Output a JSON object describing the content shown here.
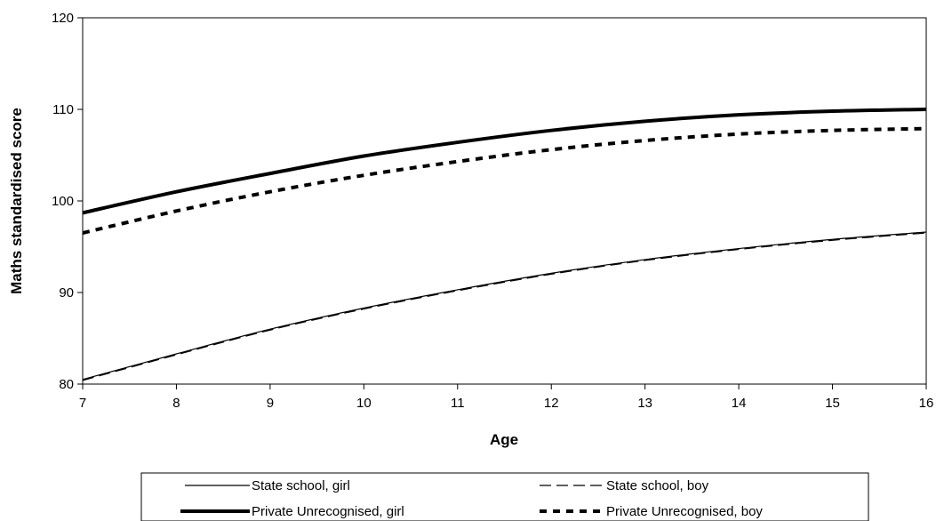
{
  "chart_data": {
    "type": "line",
    "title": "",
    "xlabel": "Age",
    "ylabel": "Maths standardised score",
    "xlim": [
      7,
      16
    ],
    "ylim": [
      80,
      120
    ],
    "x_ticks": [
      7,
      8,
      9,
      10,
      11,
      12,
      13,
      14,
      15,
      16
    ],
    "y_ticks": [
      80,
      90,
      100,
      110,
      120
    ],
    "grid": false,
    "legend_position": "bottom",
    "x": [
      7,
      8,
      9,
      10,
      11,
      12,
      13,
      14,
      15,
      16
    ],
    "series": [
      {
        "name": "State school, girl",
        "style": "thin-solid",
        "values": [
          80.5,
          83.3,
          86.0,
          88.3,
          90.3,
          92.1,
          93.6,
          94.8,
          95.8,
          96.6
        ]
      },
      {
        "name": "State school, boy",
        "style": "thin-dashed",
        "values": [
          80.4,
          83.2,
          85.9,
          88.2,
          90.2,
          92.0,
          93.5,
          94.7,
          95.7,
          96.5
        ]
      },
      {
        "name": "Private Unrecognised, girl",
        "style": "thick-solid",
        "values": [
          98.7,
          101.0,
          103.0,
          104.9,
          106.4,
          107.7,
          108.7,
          109.4,
          109.8,
          110.0
        ]
      },
      {
        "name": "Private Unrecognised, boy",
        "style": "thick-dashed",
        "values": [
          96.5,
          98.9,
          101.0,
          102.8,
          104.3,
          105.6,
          106.6,
          107.3,
          107.7,
          107.9
        ]
      }
    ]
  }
}
